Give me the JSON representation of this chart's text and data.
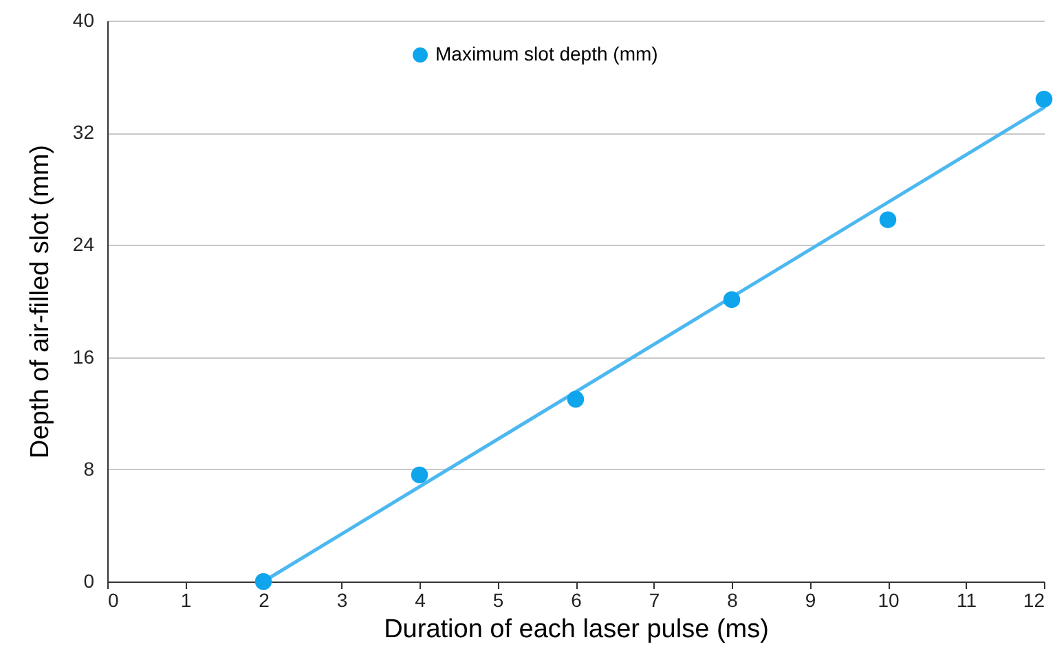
{
  "chart_data": {
    "type": "scatter",
    "xlabel": "Duration of each laser pulse (ms)",
    "ylabel": "Depth of air-filled slot (mm)",
    "x": [
      2,
      4,
      6,
      8,
      10,
      12
    ],
    "series": [
      {
        "name": "Maximum slot depth (mm)",
        "color": "#0ea5ec",
        "marker": "circle",
        "values": [
          0,
          7.6,
          13,
          20.1,
          25.8,
          34.4
        ]
      },
      {
        "type": "line",
        "color": "#4db8f0",
        "marker": "none",
        "x": [
          2,
          12
        ],
        "values": [
          0,
          33.8
        ]
      }
    ],
    "xlim": [
      0,
      12
    ],
    "xticks": [
      0,
      1,
      2,
      3,
      4,
      5,
      6,
      7,
      8,
      9,
      10,
      11,
      12
    ],
    "ylim": [
      0,
      40
    ],
    "yticks": [
      0,
      8,
      16,
      24,
      32,
      40
    ],
    "grid": "y",
    "legend": "top"
  }
}
